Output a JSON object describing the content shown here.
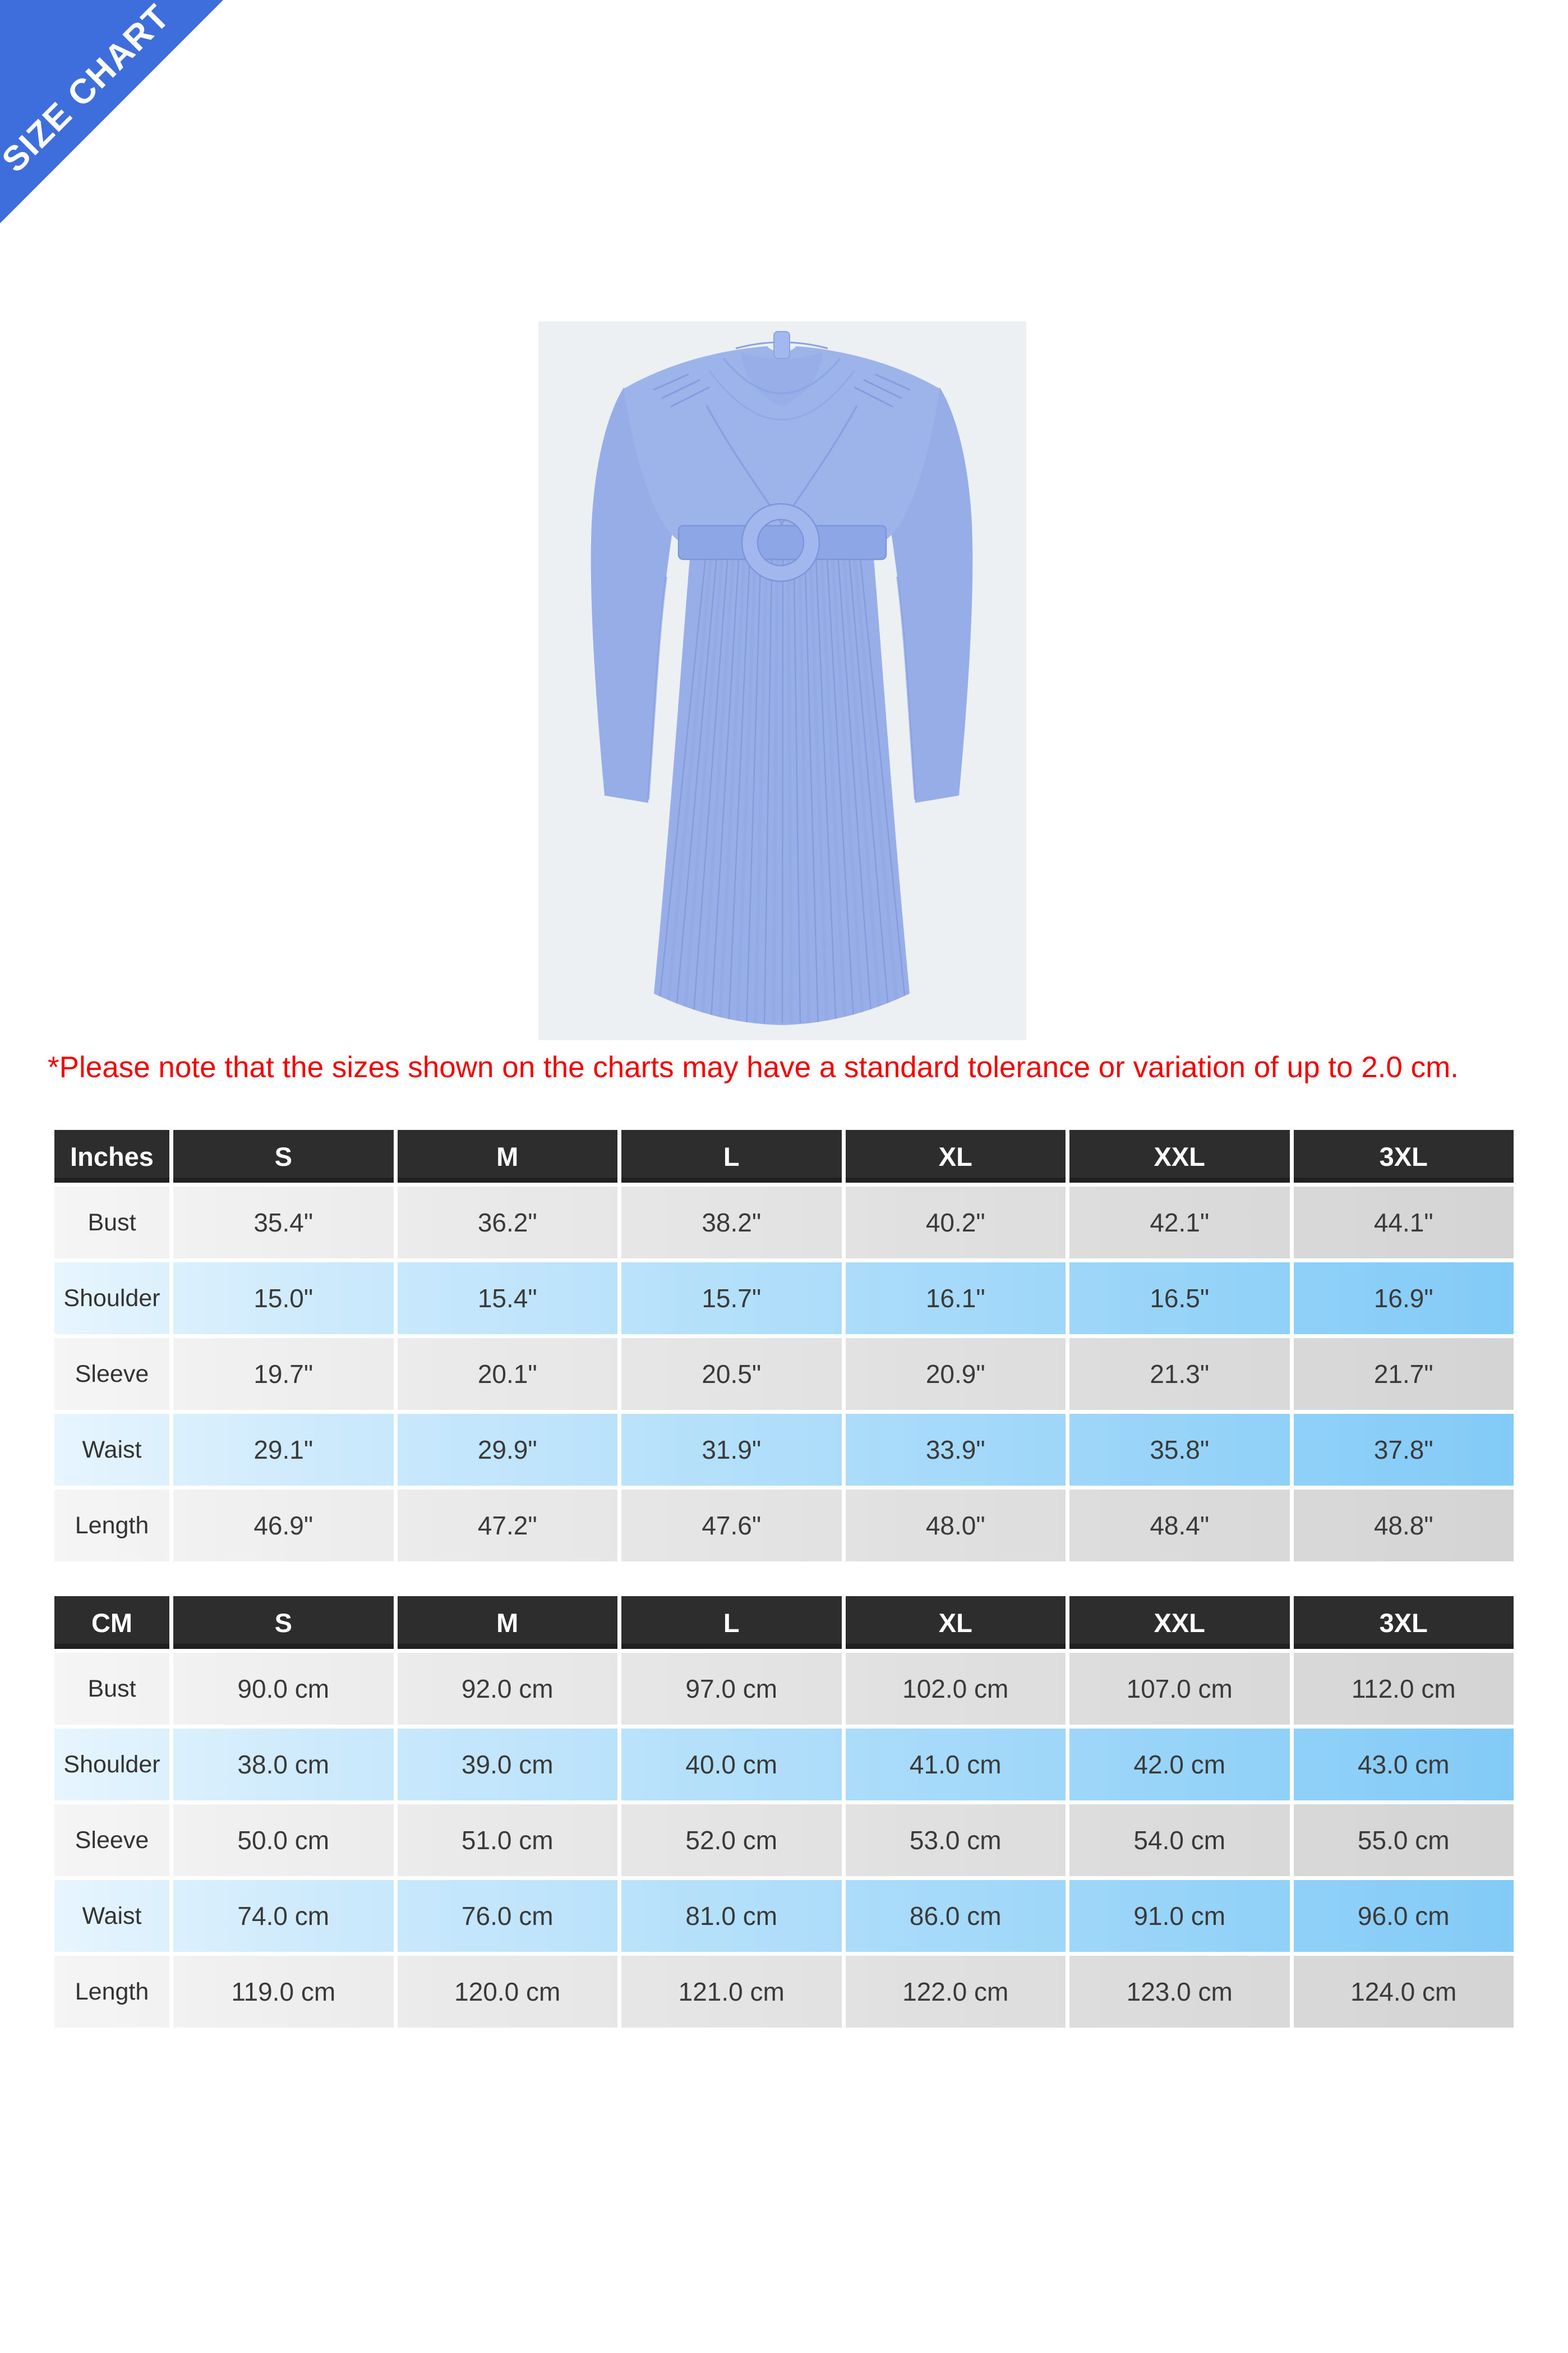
{
  "ribbon": {
    "label": "SIZE CHART",
    "color": "#3d6edc"
  },
  "product": {
    "alt": "blue long-sleeve pleated midi dress with round belt buckle"
  },
  "note": {
    "text": "*Please note that the sizes shown on the charts may have a standard tolerance or variation of up to 2.0 cm."
  },
  "colors": {
    "ribbon_blue": "#3d6edc",
    "header_dark": "#2d2d2d",
    "row_blue_start": "#e7f5fe",
    "row_blue_end": "#82cbf7",
    "row_gray_start": "#f5f5f5",
    "row_gray_end": "#d4d4d4",
    "note_red": "#f40000",
    "dress_blue": "#9db4eb",
    "photo_background": "#edf0f3"
  },
  "tables": [
    {
      "unit_label": "Inches",
      "columns": [
        "S",
        "M",
        "L",
        "XL",
        "XXL",
        "3XL"
      ],
      "rows": [
        {
          "label": "Bust",
          "values": [
            "35.4\"",
            "36.2\"",
            "38.2\"",
            "40.2\"",
            "42.1\"",
            "44.1\""
          ]
        },
        {
          "label": "Shoulder",
          "values": [
            "15.0\"",
            "15.4\"",
            "15.7\"",
            "16.1\"",
            "16.5\"",
            "16.9\""
          ]
        },
        {
          "label": "Sleeve",
          "values": [
            "19.7\"",
            "20.1\"",
            "20.5\"",
            "20.9\"",
            "21.3\"",
            "21.7\""
          ]
        },
        {
          "label": "Waist",
          "values": [
            "29.1\"",
            "29.9\"",
            "31.9\"",
            "33.9\"",
            "35.8\"",
            "37.8\""
          ]
        },
        {
          "label": "Length",
          "values": [
            "46.9\"",
            "47.2\"",
            "47.6\"",
            "48.0\"",
            "48.4\"",
            "48.8\""
          ]
        }
      ]
    },
    {
      "unit_label": "CM",
      "columns": [
        "S",
        "M",
        "L",
        "XL",
        "XXL",
        "3XL"
      ],
      "rows": [
        {
          "label": "Bust",
          "values": [
            "90.0 cm",
            "92.0 cm",
            "97.0 cm",
            "102.0 cm",
            "107.0 cm",
            "112.0 cm"
          ]
        },
        {
          "label": "Shoulder",
          "values": [
            "38.0 cm",
            "39.0 cm",
            "40.0 cm",
            "41.0 cm",
            "42.0 cm",
            "43.0 cm"
          ]
        },
        {
          "label": "Sleeve",
          "values": [
            "50.0 cm",
            "51.0 cm",
            "52.0 cm",
            "53.0 cm",
            "54.0 cm",
            "55.0 cm"
          ]
        },
        {
          "label": "Waist",
          "values": [
            "74.0 cm",
            "76.0 cm",
            "81.0 cm",
            "86.0 cm",
            "91.0 cm",
            "96.0 cm"
          ]
        },
        {
          "label": "Length",
          "values": [
            "119.0 cm",
            "120.0 cm",
            "121.0 cm",
            "122.0 cm",
            "123.0 cm",
            "124.0 cm"
          ]
        }
      ]
    }
  ]
}
